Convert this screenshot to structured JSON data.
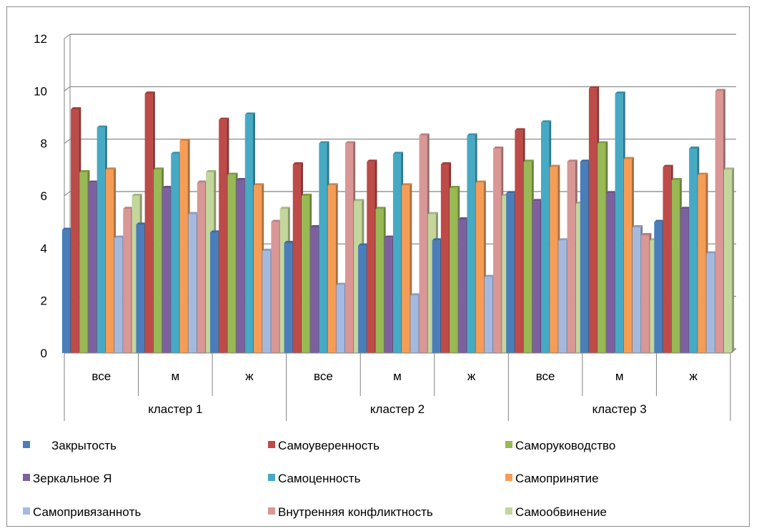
{
  "chart_data": {
    "type": "bar",
    "ylim": [
      0,
      12
    ],
    "yticks": [
      "0",
      "2",
      "4",
      "6",
      "8",
      "10",
      "12"
    ],
    "grid": true,
    "legend_position": "bottom",
    "groups": [
      {
        "label": "кластер 1",
        "categories": [
          "все",
          "м",
          "ж"
        ]
      },
      {
        "label": "кластер 2",
        "categories": [
          "все",
          "м",
          "ж"
        ]
      },
      {
        "label": "кластер 3",
        "categories": [
          "все",
          "м",
          "ж"
        ]
      }
    ],
    "series": [
      {
        "name": "Закрытость",
        "color": "#4a7ebb",
        "values": [
          4.7,
          4.9,
          4.6,
          4.2,
          4.1,
          4.3,
          6.1,
          7.3,
          5.0
        ]
      },
      {
        "name": "Самоуверенность",
        "color": "#be4b48",
        "values": [
          9.3,
          9.9,
          8.9,
          7.2,
          7.3,
          7.2,
          8.5,
          10.1,
          7.1
        ]
      },
      {
        "name": "Саморуководство",
        "color": "#98b954",
        "values": [
          6.9,
          7.0,
          6.8,
          6.0,
          5.5,
          6.3,
          7.3,
          8.0,
          6.6
        ]
      },
      {
        "name": "Зеркальное Я",
        "color": "#7d60a0",
        "values": [
          6.5,
          6.3,
          6.6,
          4.8,
          4.4,
          5.1,
          5.8,
          6.1,
          5.5
        ]
      },
      {
        "name": "Самоценность",
        "color": "#46aac5",
        "values": [
          8.6,
          7.6,
          9.1,
          8.0,
          7.6,
          8.3,
          8.8,
          9.9,
          7.8
        ]
      },
      {
        "name": "Самопринятие",
        "color": "#f59d56",
        "values": [
          7.0,
          8.1,
          6.4,
          6.4,
          6.4,
          6.5,
          7.1,
          7.4,
          6.8
        ]
      },
      {
        "name": "Самопривязаннoть",
        "color": "#a5b9e0",
        "values": [
          4.4,
          5.3,
          3.9,
          2.6,
          2.2,
          2.9,
          4.3,
          4.8,
          3.8
        ]
      },
      {
        "name": "Внутренняя конфликтность",
        "color": "#d99795",
        "values": [
          5.5,
          6.5,
          5.0,
          8.0,
          8.3,
          7.8,
          7.3,
          4.5,
          10.0
        ]
      },
      {
        "name": "Самообвинение",
        "color": "#c3d69b",
        "values": [
          6.0,
          6.9,
          5.5,
          5.8,
          5.3,
          6.0,
          5.7,
          4.3,
          7.0
        ]
      }
    ]
  }
}
